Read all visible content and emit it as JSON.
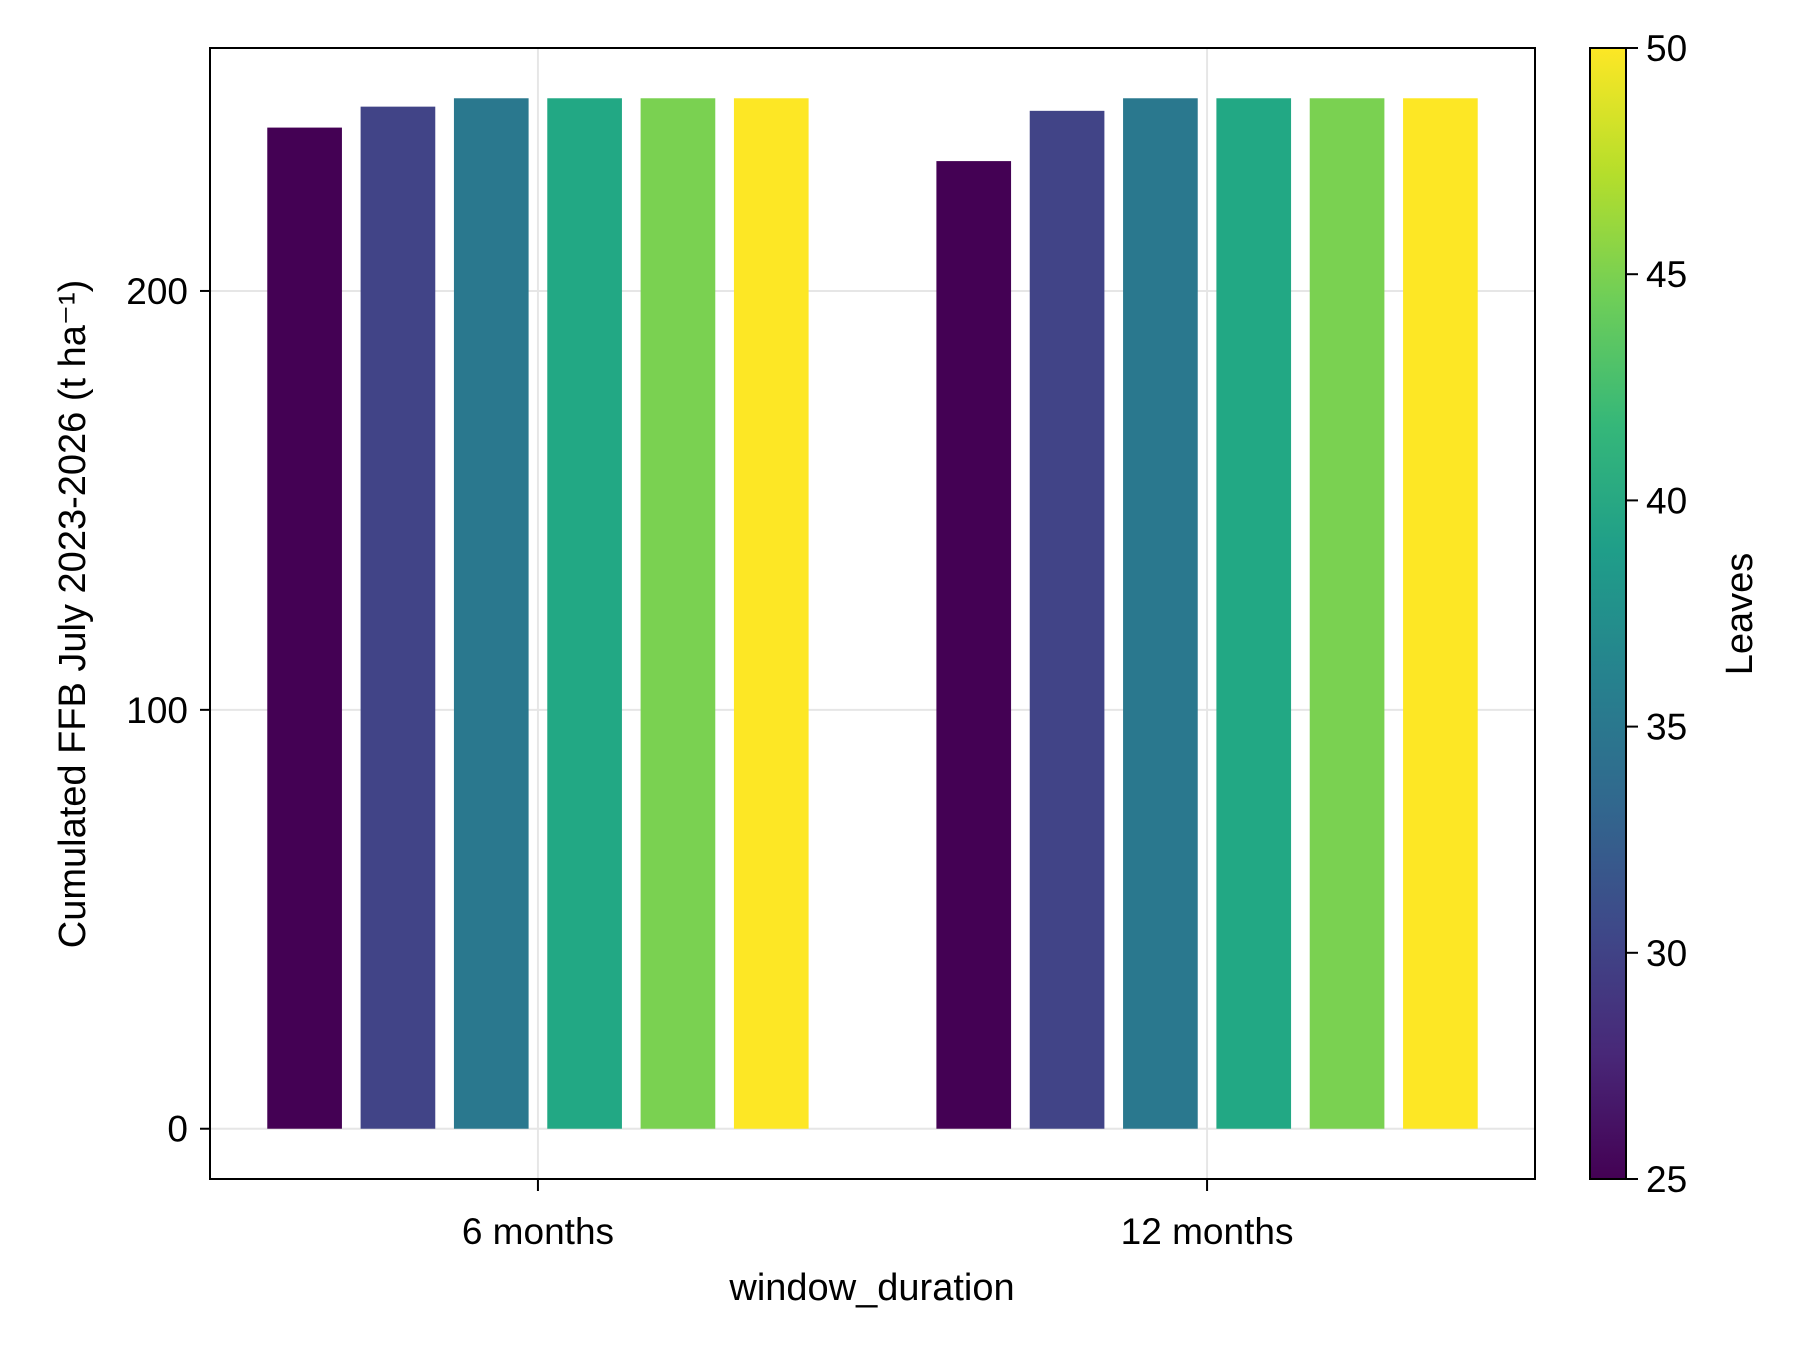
{
  "chart_data": {
    "type": "bar",
    "xlabel": "window_duration",
    "ylabel": "Cumulated FFB July 2023-2026 (t ha⁻¹)",
    "categories": [
      "6 months",
      "12 months"
    ],
    "ylim": [
      -12,
      258
    ],
    "yticks": [
      0,
      100,
      200
    ],
    "grid": true,
    "series": [
      {
        "leaves": 25,
        "color": "#440154",
        "values": [
          239,
          231
        ]
      },
      {
        "leaves": 30,
        "color": "#414487",
        "values": [
          244,
          243
        ]
      },
      {
        "leaves": 35,
        "color": "#2a788e",
        "values": [
          246,
          246
        ]
      },
      {
        "leaves": 40,
        "color": "#22a884",
        "values": [
          246,
          246
        ]
      },
      {
        "leaves": 45,
        "color": "#7ad151",
        "values": [
          246,
          246
        ]
      },
      {
        "leaves": 50,
        "color": "#fde725",
        "values": [
          246,
          246
        ]
      }
    ],
    "colorbar": {
      "label": "Leaves",
      "range": [
        25,
        50
      ],
      "ticks": [
        25,
        30,
        35,
        40,
        45,
        50
      ],
      "colormap": [
        "#440154",
        "#482878",
        "#3e4989",
        "#31688e",
        "#26828e",
        "#1f9e89",
        "#35b779",
        "#6ece58",
        "#b5de2b",
        "#fde725"
      ]
    }
  }
}
